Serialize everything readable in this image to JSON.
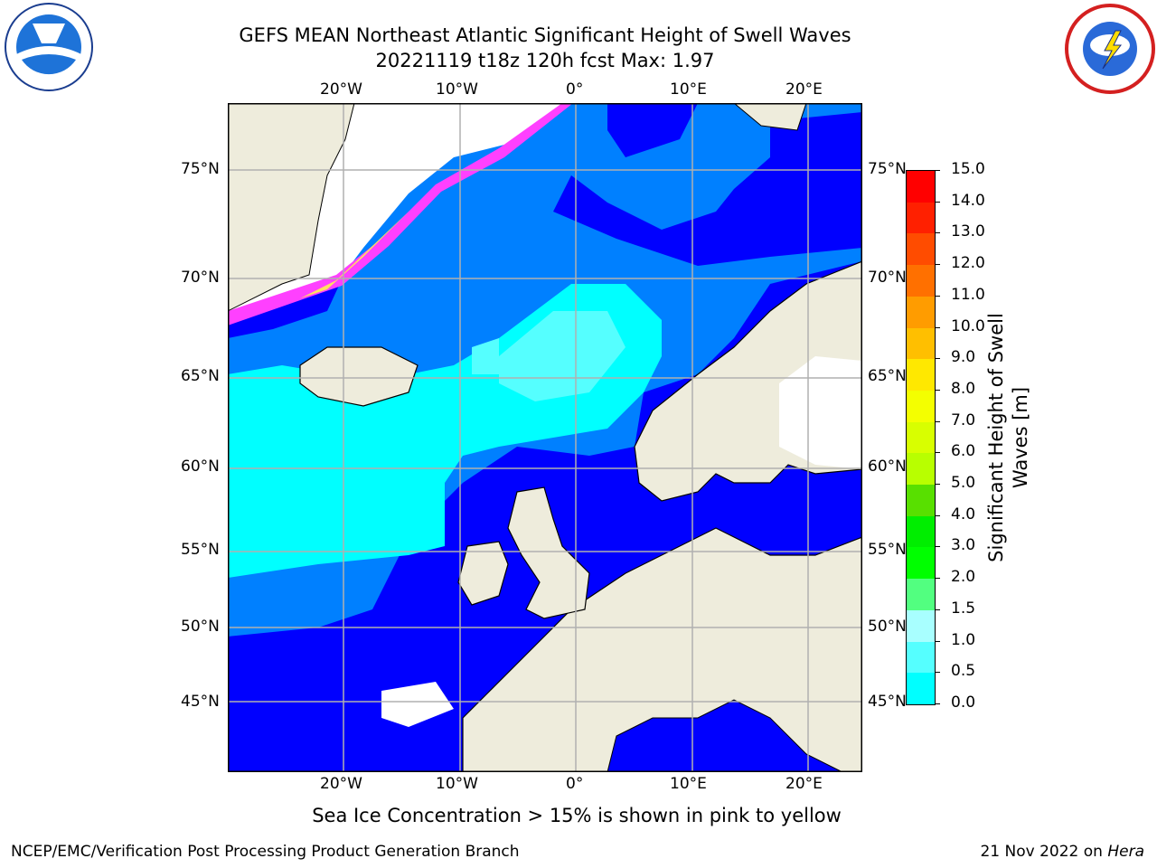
{
  "title": {
    "line1": "GEFS MEAN Northeast Atlantic Significant Height of Swell Waves",
    "line2": "20221119 t18z 120h fcst   Max: 1.97"
  },
  "logos": {
    "left": "noaa-logo",
    "right": "national-weather-service-logo"
  },
  "map": {
    "lon_labels": [
      "20°W",
      "10°W",
      "0°",
      "10°E",
      "20°E"
    ],
    "lat_labels_left": [
      "75°N",
      "70°N",
      "65°N",
      "60°N",
      "55°N",
      "50°N",
      "45°N"
    ],
    "lat_labels_right": [
      "75°N",
      "70°N",
      "65°N",
      "60°N",
      "55°N",
      "50°N",
      "45°N"
    ],
    "colors": {
      "land": "#eeecdc",
      "nodata": "#ffffff",
      "band_0_0.5": "#0000ff",
      "band_0.5_1.0": "#0080ff",
      "band_1.0_1.5": "#00ffff",
      "band_1.5_2.0": "#55ffff",
      "sea_ice_pink": "#ff40ff",
      "sea_ice_yellow": "#ffe060",
      "grid": "#b0b0b0"
    }
  },
  "colorbar": {
    "title": "Significant Height of Swell Waves [m]",
    "tick_labels": [
      "15.0",
      "14.0",
      "13.0",
      "12.0",
      "11.0",
      "10.0",
      "9.0",
      "8.0",
      "7.0",
      "6.0",
      "5.0",
      "4.0",
      "3.0",
      "2.0",
      "1.5",
      "1.0",
      "0.5",
      "0.0"
    ],
    "colors_top_to_bottom": [
      "#ff0000",
      "#ff2000",
      "#ff4c00",
      "#ff7000",
      "#ff9c00",
      "#ffbf00",
      "#ffe800",
      "#f4ff00",
      "#d8ff00",
      "#b8ff00",
      "#58e000",
      "#00ee00",
      "#00ff00",
      "#52ff80",
      "#a8ffff",
      "#55ffff",
      "#00ffff",
      "#0080ff",
      "#0000ff"
    ]
  },
  "footer": {
    "center": "Sea Ice Concentration > 15% is shown in pink to yellow",
    "left": "NCEP/EMC/Verification Post Processing Product Generation Branch",
    "date": "21 Nov 2022 on",
    "host": "Hera"
  }
}
